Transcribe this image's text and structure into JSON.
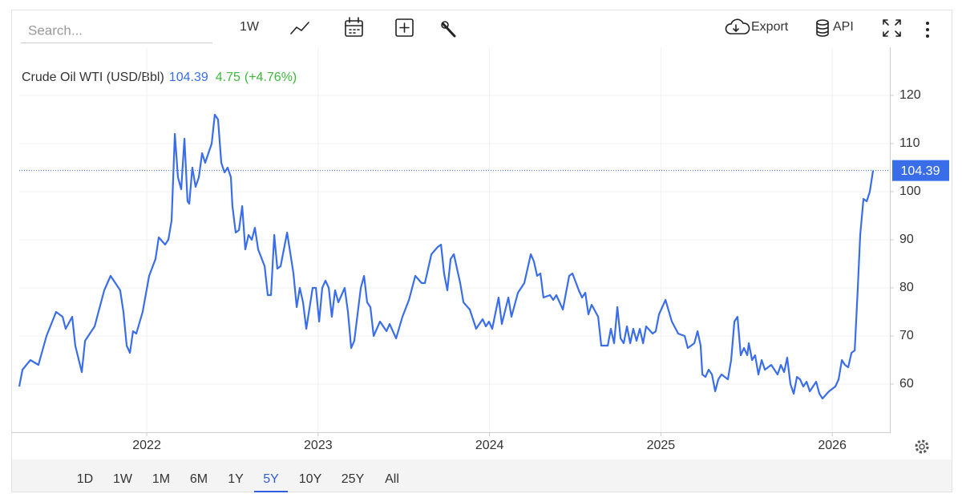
{
  "chart_data": {
    "type": "line",
    "legend_name": "Crude Oil WTI (USD/Bbl)",
    "change": 4.75,
    "change_pct": {
      "value": 4.76,
      "label": "(+4.76%)"
    },
    "x": [
      2021.256,
      2021.275,
      2021.321,
      2021.368,
      2021.415,
      2021.471,
      2021.509,
      2021.527,
      2021.565,
      2021.583,
      2021.621,
      2021.64,
      2021.696,
      2021.752,
      2021.789,
      2021.845,
      2021.864,
      2021.883,
      2021.902,
      2021.92,
      2021.939,
      2021.976,
      2022.014,
      2022.051,
      2022.07,
      2022.107,
      2022.126,
      2022.145,
      2022.164,
      2022.182,
      2022.201,
      2022.22,
      2022.238,
      2022.248,
      2022.266,
      2022.285,
      2022.304,
      2022.323,
      2022.341,
      2022.379,
      2022.397,
      2022.416,
      2022.435,
      2022.454,
      2022.472,
      2022.491,
      2022.5,
      2022.519,
      2022.538,
      2022.557,
      2022.575,
      2022.594,
      2022.613,
      2022.631,
      2022.65,
      2022.688,
      2022.706,
      2022.725,
      2022.744,
      2022.762,
      2022.781,
      2022.819,
      2022.856,
      2022.875,
      2022.893,
      2022.912,
      2022.931,
      2022.968,
      2022.987,
      2023.006,
      2023.024,
      2023.043,
      2023.062,
      2023.08,
      2023.099,
      2023.118,
      2023.155,
      2023.174,
      2023.193,
      2023.211,
      2023.249,
      2023.268,
      2023.286,
      2023.305,
      2023.324,
      2023.361,
      2023.399,
      2023.417,
      2023.455,
      2023.492,
      2023.53,
      2023.567,
      2023.604,
      2023.623,
      2023.661,
      2023.698,
      2023.717,
      2023.735,
      2023.754,
      2023.773,
      2023.792,
      2023.829,
      2023.848,
      2023.885,
      2023.922,
      2023.96,
      2023.979,
      2023.997,
      2024.016,
      2024.053,
      2024.072,
      2024.11,
      2024.128,
      2024.166,
      2024.203,
      2024.241,
      2024.259,
      2024.278,
      2024.297,
      2024.315,
      2024.353,
      2024.372,
      2024.39,
      2024.428,
      2024.465,
      2024.484,
      2024.521,
      2024.54,
      2024.559,
      2024.577,
      2024.596,
      2024.634,
      2024.652,
      2024.69,
      2024.708,
      2024.727,
      2024.746,
      2024.765,
      2024.783,
      2024.802,
      2024.821,
      2024.839,
      2024.858,
      2024.877,
      2024.896,
      2024.914,
      2024.952,
      2024.97,
      2024.989,
      2025.027,
      2025.064,
      2025.101,
      2025.139,
      2025.157,
      2025.195,
      2025.214,
      2025.232,
      2025.242,
      2025.26,
      2025.279,
      2025.298,
      2025.317,
      2025.335,
      2025.354,
      2025.391,
      2025.41,
      2025.429,
      2025.447,
      2025.466,
      2025.485,
      2025.504,
      2025.513,
      2025.532,
      2025.55,
      2025.569,
      2025.588,
      2025.607,
      2025.644,
      2025.681,
      2025.7,
      2025.719,
      2025.737,
      2025.756,
      2025.775,
      2025.794,
      2025.812,
      2025.831,
      2025.85,
      2025.869,
      2025.906,
      2025.925,
      2025.943,
      2025.981,
      2026.018,
      2026.037,
      2026.056,
      2026.074,
      2026.093,
      2026.112,
      2026.131,
      2026.149,
      2026.163,
      2026.182,
      2026.201,
      2026.219,
      2026.238
    ],
    "series": [
      {
        "name": "Crude Oil WTI (USD/Bbl)",
        "color": "#3a6ee8",
        "values": [
          59.5,
          63,
          65,
          64,
          70,
          75,
          74,
          71.5,
          74,
          68,
          62.5,
          69,
          72,
          79.5,
          82.5,
          79.5,
          75,
          68,
          66.5,
          71,
          70.5,
          75,
          82.5,
          86,
          90.5,
          89,
          90,
          94,
          112,
          103,
          100.5,
          111,
          98,
          97.5,
          105,
          101,
          103,
          108,
          106,
          110,
          116,
          115,
          106,
          104,
          105,
          103,
          97,
          91.5,
          92,
          97,
          88,
          91,
          90,
          92.5,
          88,
          84.5,
          78.5,
          78.5,
          91,
          84,
          84.5,
          91.5,
          83,
          76,
          80,
          77,
          71.5,
          80,
          80,
          73,
          80,
          81.5,
          80,
          74,
          79.5,
          77,
          80,
          75,
          67.5,
          69,
          80,
          82.5,
          77,
          76,
          70,
          73,
          71,
          72.5,
          69.5,
          74,
          77.5,
          82.5,
          81,
          81,
          87,
          88.5,
          89,
          83,
          79.5,
          86,
          87,
          81,
          77,
          75.5,
          71.5,
          73.5,
          72,
          73,
          71.5,
          78,
          72.5,
          78,
          74,
          79,
          81,
          87,
          85.5,
          82.5,
          83,
          78,
          78.5,
          77.5,
          78.5,
          75.5,
          82.5,
          83,
          79.5,
          78,
          79,
          74.5,
          76.5,
          74,
          68,
          68,
          71.5,
          68.5,
          76,
          69.5,
          68.5,
          72,
          68.5,
          71.5,
          69,
          71.5,
          68.5,
          72,
          70.5,
          71,
          74.5,
          77.5,
          73,
          70.5,
          70,
          67.5,
          68.5,
          71,
          68,
          62,
          61.5,
          63,
          62,
          58.5,
          61,
          62,
          61,
          65,
          73,
          74,
          66,
          67.5,
          66,
          68.5,
          65,
          66,
          62,
          65,
          63,
          64,
          62,
          64,
          62.5,
          65.5,
          60,
          58,
          61.5,
          61,
          59.5,
          60.5,
          58.5,
          60.5,
          58,
          57,
          58.5,
          59.5,
          61,
          65,
          64,
          63.5,
          66.5,
          67,
          80,
          91,
          98.5,
          98,
          100,
          104.39
        ]
      }
    ],
    "xlim": [
      2021.256,
      2026.336
    ],
    "xticks": [
      2022,
      2023,
      2024,
      2025,
      2026
    ],
    "ylim": [
      50,
      130
    ],
    "yticks": [
      60,
      70,
      80,
      90,
      100,
      110,
      120
    ],
    "grid": true,
    "last_value_line": true
  },
  "ui": {
    "search_placeholder": "Search...",
    "interval": "1W",
    "export": "Export",
    "api": "API",
    "ranges": [
      "1D",
      "1W",
      "1M",
      "6M",
      "1Y",
      "5Y",
      "10Y",
      "25Y",
      "All"
    ],
    "active_range": "5Y"
  }
}
